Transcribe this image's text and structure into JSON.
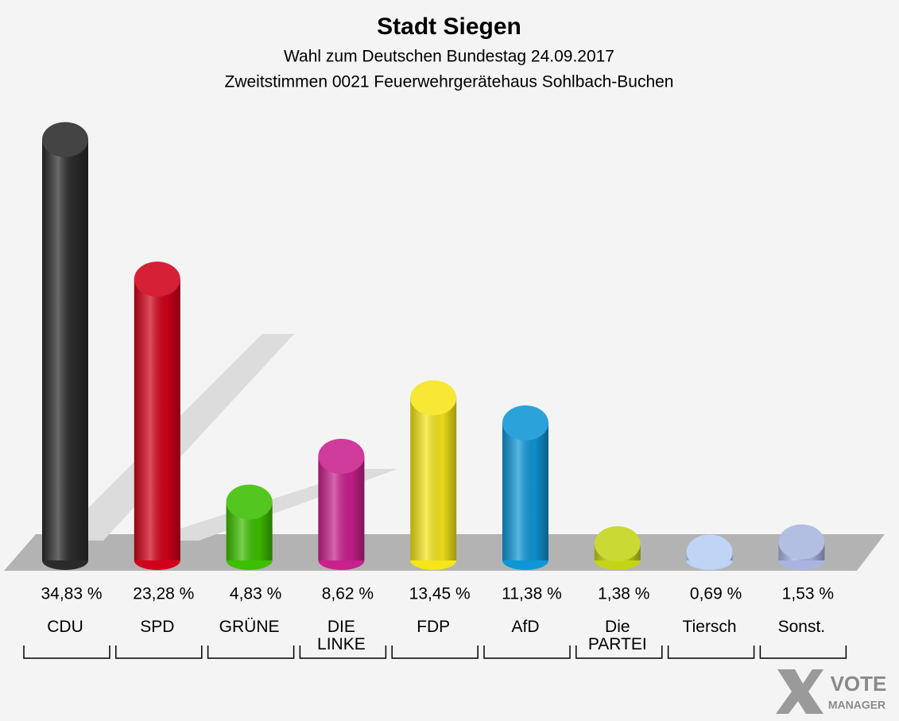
{
  "chart_data": {
    "type": "bar",
    "title": "Stadt Siegen",
    "subtitle": "Wahl zum Deutschen Bundestag 24.09.2017",
    "subtitle2": "Zweitstimmen 0021 Feuerwehrgerätehaus Sohlbach-Buchen",
    "categories": [
      "CDU",
      "SPD",
      "GRÜNE",
      "DIE LINKE",
      "FDP",
      "AfD",
      "Die PARTEI",
      "Tiersch",
      "Sonst."
    ],
    "values": [
      34.83,
      23.28,
      4.83,
      8.62,
      13.45,
      11.38,
      1.38,
      0.69,
      1.53
    ],
    "value_labels": [
      "34,83 %",
      "23,28 %",
      "4,83 %",
      "8,62 %",
      "13,45 %",
      "11,38 %",
      "1,38 %",
      "0,69 %",
      "1,53 %"
    ],
    "colors": [
      "#2b2b2b",
      "#d0021b",
      "#3cbf00",
      "#c8208c",
      "#f5e51a",
      "#0f96d6",
      "#c3d417",
      "#b8d0f5",
      "#a9b5e0"
    ],
    "logo": {
      "line1": "VOTE",
      "line2": "MANAGER"
    }
  }
}
